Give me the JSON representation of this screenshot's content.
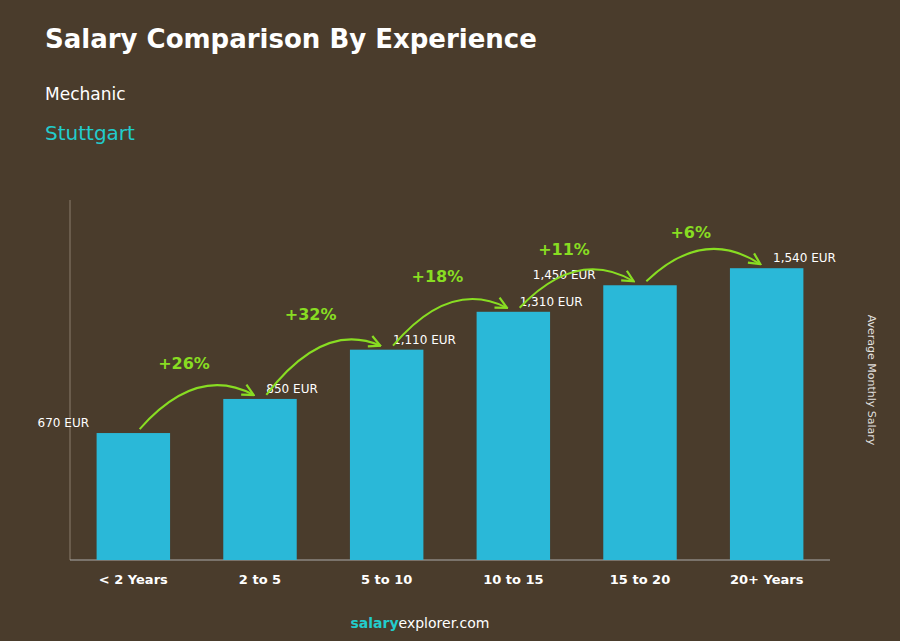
{
  "chart_data": {
    "type": "bar",
    "title": "Salary Comparison By Experience",
    "subtitle": [
      "Mechanic",
      "Stuttgart"
    ],
    "categories": [
      "< 2 Years",
      "2 to 5",
      "5 to 10",
      "10 to 15",
      "15 to 20",
      "20+ Years"
    ],
    "values": [
      670,
      850,
      1110,
      1310,
      1450,
      1540
    ],
    "value_labels": [
      "670 EUR",
      "850 EUR",
      "1,110 EUR",
      "1,310 EUR",
      "1,450 EUR",
      "1,540 EUR"
    ],
    "data_labels": true,
    "annotations": [
      "+26%",
      "+32%",
      "+18%",
      "+11%",
      "+6%"
    ],
    "ylabel": "Average Monthly Salary",
    "footer": [
      "salary",
      "explorer.com"
    ],
    "color": "#2ab8d8",
    "ylim": [
      0,
      1900
    ],
    "yticks": [],
    "tick_labels": "x",
    "grid": false
  }
}
